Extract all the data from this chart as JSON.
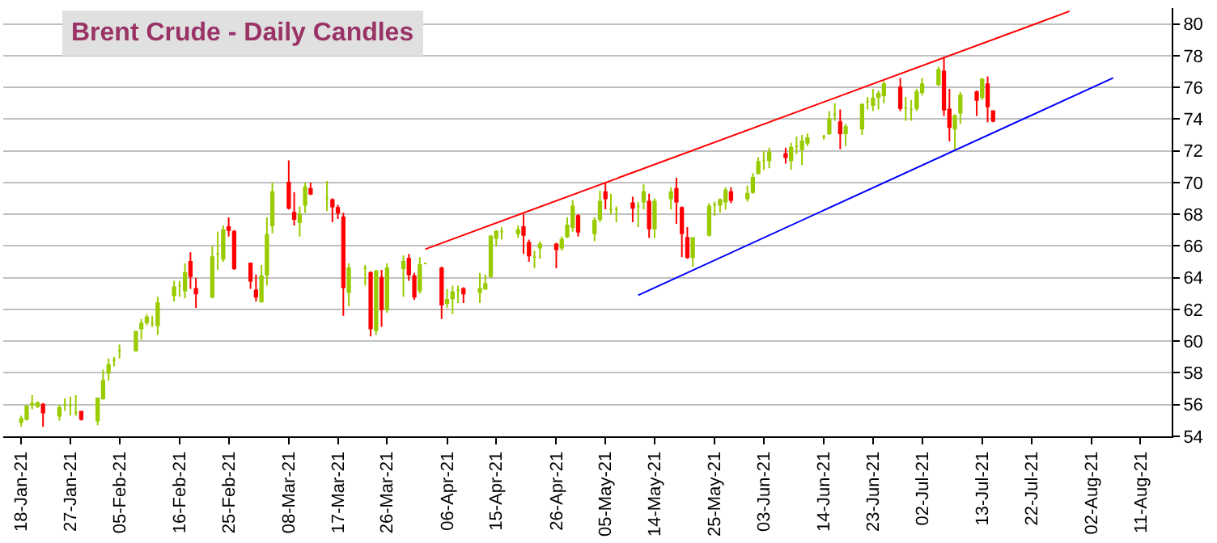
{
  "chart_data": {
    "type": "candlestick",
    "title": "Brent Crude - Daily Candles",
    "x": [
      "--01-18",
      "--01-19",
      "--01-20",
      "--01-21",
      "--01-22",
      "--01-25",
      "--01-26",
      "--01-27",
      "--01-28",
      "--01-29",
      "--02-01",
      "--02-02",
      "--02-03",
      "--02-04",
      "--02-05",
      "--02-08",
      "--02-09",
      "--02-10",
      "--02-11",
      "--02-12",
      "--02-15",
      "--02-16",
      "--02-17",
      "--02-18",
      "--02-19",
      "--02-22",
      "--02-23",
      "--02-24",
      "--02-25",
      "--02-26",
      "--03-01",
      "--03-02",
      "--03-03",
      "--03-04",
      "--03-05",
      "--03-08",
      "--03-09",
      "--03-10",
      "--03-11",
      "--03-12",
      "--03-15",
      "--03-16",
      "--03-17",
      "--03-18",
      "--03-19",
      "--03-22",
      "--03-23",
      "--03-24",
      "--03-25",
      "--03-26",
      "--03-29",
      "--03-30",
      "--03-31",
      "--04-01",
      "--04-02",
      "--04-05",
      "--04-06",
      "--04-07",
      "--04-08",
      "--04-09",
      "--04-12",
      "--04-13",
      "--04-14",
      "--04-15",
      "--04-16",
      "--04-19",
      "--04-20",
      "--04-21",
      "--04-22",
      "--04-23",
      "--04-26",
      "--04-27",
      "--04-28",
      "--04-29",
      "--04-30",
      "--05-03",
      "--05-04",
      "--05-05",
      "--05-06",
      "--05-07",
      "--05-10",
      "--05-11",
      "--05-12",
      "--05-13",
      "--05-14",
      "--05-17",
      "--05-18",
      "--05-19",
      "--05-20",
      "--05-21",
      "--05-24",
      "--05-25",
      "--05-26",
      "--05-27",
      "--05-28",
      "--05-31",
      "--06-01",
      "--06-02",
      "--06-03",
      "--06-04",
      "--06-07",
      "--06-08",
      "--06-09",
      "--06-10",
      "--06-11",
      "--06-14",
      "--06-15",
      "--06-16",
      "--06-17",
      "--06-18",
      "--06-21",
      "--06-22",
      "--06-23",
      "--06-24",
      "--06-25",
      "--06-28",
      "--06-29",
      "--06-30",
      "--07-01",
      "--07-02",
      "--07-05",
      "--07-06",
      "--07-07",
      "--07-08",
      "--07-09",
      "--07-12",
      "--07-13",
      "--07-14",
      "--07-15"
    ],
    "ohlc": [
      [
        54.9,
        55.3,
        54.6,
        55.1
      ],
      [
        55.1,
        55.9,
        55.0,
        55.9
      ],
      [
        56.0,
        56.6,
        55.7,
        56.05
      ],
      [
        55.9,
        56.2,
        55.8,
        56.1
      ],
      [
        56.0,
        56.1,
        54.6,
        55.5
      ],
      [
        55.3,
        56.0,
        55.0,
        55.8
      ],
      [
        56.0,
        56.4,
        55.6,
        56.0
      ],
      [
        55.95,
        56.5,
        55.3,
        55.95
      ],
      [
        55.5,
        56.6,
        55.3,
        55.5
      ],
      [
        55.55,
        55.6,
        55.0,
        55.1
      ],
      [
        55.0,
        56.4,
        54.7,
        56.4
      ],
      [
        56.4,
        58.2,
        56.3,
        57.5
      ],
      [
        58.0,
        58.9,
        57.5,
        58.5
      ],
      [
        58.8,
        59.0,
        58.4,
        58.8
      ],
      [
        59.4,
        59.8,
        58.9,
        59.4
      ],
      [
        59.4,
        60.6,
        59.4,
        60.6
      ],
      [
        60.8,
        61.4,
        60.1,
        61.1
      ],
      [
        61.2,
        61.7,
        61.0,
        61.5
      ],
      [
        61.1,
        61.6,
        60.9,
        61.1
      ],
      [
        61.0,
        62.8,
        60.4,
        62.4
      ],
      [
        62.9,
        63.8,
        62.5,
        63.4
      ],
      [
        63.5,
        63.8,
        62.8,
        63.5
      ],
      [
        63.2,
        64.9,
        62.7,
        64.3
      ],
      [
        65.0,
        65.6,
        63.3,
        64.1
      ],
      [
        63.3,
        64.0,
        62.1,
        63.0
      ],
      [
        62.8,
        66.0,
        62.7,
        65.3
      ],
      [
        65.5,
        66.9,
        64.5,
        65.5
      ],
      [
        65.2,
        67.3,
        65.0,
        67.0
      ],
      [
        67.2,
        67.8,
        66.6,
        67.0
      ],
      [
        66.9,
        67.0,
        64.5,
        64.6
      ],
      [
        64.9,
        64.9,
        63.3,
        63.8
      ],
      [
        63.2,
        64.2,
        62.5,
        62.8
      ],
      [
        62.5,
        64.8,
        62.5,
        64.1
      ],
      [
        64.2,
        67.8,
        63.5,
        66.7
      ],
      [
        67.3,
        70.0,
        66.8,
        69.4
      ],
      [
        70.0,
        71.4,
        68.3,
        68.4
      ],
      [
        68.1,
        69.4,
        67.3,
        67.7
      ],
      [
        67.5,
        68.5,
        66.6,
        68.0
      ],
      [
        68.6,
        70.0,
        68.1,
        69.7
      ],
      [
        69.6,
        70.0,
        69.2,
        69.3
      ],
      [
        69.0,
        70.1,
        68.2,
        69.0
      ],
      [
        68.9,
        69.0,
        67.5,
        68.5
      ],
      [
        68.4,
        68.6,
        67.7,
        68.1
      ],
      [
        67.8,
        68.1,
        61.6,
        63.4
      ],
      [
        63.1,
        64.9,
        62.2,
        64.6
      ],
      [
        64.6,
        64.8,
        63.5,
        64.6
      ],
      [
        64.3,
        64.4,
        60.3,
        60.8
      ],
      [
        60.7,
        64.5,
        60.4,
        64.4
      ],
      [
        64.0,
        64.5,
        60.9,
        62.0
      ],
      [
        62.0,
        64.9,
        61.8,
        64.6
      ],
      [
        64.6,
        65.4,
        62.8,
        65.0
      ],
      [
        65.2,
        65.5,
        63.8,
        64.2
      ],
      [
        64.1,
        64.3,
        62.6,
        62.8
      ],
      [
        63.2,
        65.3,
        63.0,
        64.8
      ],
      [
        64.9,
        64.9,
        64.9,
        64.9
      ],
      [
        64.6,
        64.7,
        61.4,
        62.3
      ],
      [
        62.4,
        63.3,
        62.1,
        62.6
      ],
      [
        62.7,
        63.5,
        61.7,
        63.1
      ],
      [
        63.2,
        63.5,
        62.4,
        63.2
      ],
      [
        63.3,
        63.4,
        62.4,
        63.0
      ],
      [
        63.1,
        64.3,
        62.4,
        63.3
      ],
      [
        63.3,
        64.2,
        63.3,
        63.6
      ],
      [
        64.1,
        66.7,
        64.0,
        66.6
      ],
      [
        66.5,
        67.0,
        66.0,
        66.9
      ],
      [
        66.9,
        67.2,
        66.4,
        66.9
      ],
      [
        66.8,
        67.3,
        66.5,
        67.0
      ],
      [
        67.2,
        68.0,
        65.5,
        66.7
      ],
      [
        66.2,
        66.4,
        65.0,
        65.4
      ],
      [
        65.3,
        65.7,
        64.6,
        65.3
      ],
      [
        65.9,
        66.3,
        65.2,
        66.1
      ],
      [
        66.1,
        66.2,
        64.6,
        65.8
      ],
      [
        65.9,
        66.6,
        65.7,
        66.4
      ],
      [
        66.6,
        67.8,
        66.5,
        67.3
      ],
      [
        67.2,
        68.9,
        66.9,
        68.5
      ],
      [
        67.9,
        68.0,
        66.6,
        66.9
      ],
      [
        66.8,
        67.8,
        66.3,
        67.6
      ],
      [
        67.7,
        69.5,
        67.5,
        68.8
      ],
      [
        69.4,
        70.0,
        68.3,
        69.0
      ],
      [
        68.3,
        69.3,
        68.0,
        68.3
      ],
      [
        68.3,
        68.5,
        67.5,
        68.3
      ],
      [
        68.7,
        69.1,
        67.5,
        68.4
      ],
      [
        68.5,
        68.8,
        67.2,
        68.5
      ],
      [
        68.8,
        69.9,
        68.3,
        69.4
      ],
      [
        68.8,
        69.3,
        66.5,
        67.1
      ],
      [
        67.1,
        69.0,
        66.5,
        68.8
      ],
      [
        69.0,
        69.7,
        68.3,
        69.4
      ],
      [
        69.6,
        70.3,
        67.4,
        68.8
      ],
      [
        68.4,
        68.5,
        65.3,
        66.8
      ],
      [
        66.5,
        67.2,
        65.2,
        65.3
      ],
      [
        65.3,
        66.5,
        64.7,
        66.5
      ],
      [
        66.7,
        68.7,
        66.6,
        68.5
      ],
      [
        68.6,
        68.8,
        67.9,
        68.6
      ],
      [
        68.6,
        69.0,
        68.1,
        68.9
      ],
      [
        68.8,
        69.7,
        68.3,
        69.5
      ],
      [
        69.4,
        69.7,
        68.7,
        68.9
      ],
      [
        69.0,
        69.8,
        68.8,
        69.3
      ],
      [
        69.4,
        70.6,
        69.3,
        70.3
      ],
      [
        70.6,
        71.6,
        70.5,
        71.3
      ],
      [
        71.4,
        72.0,
        70.8,
        71.4
      ],
      [
        71.4,
        72.2,
        70.9,
        71.9
      ],
      [
        71.8,
        72.2,
        71.2,
        71.6
      ],
      [
        71.4,
        72.5,
        70.8,
        72.2
      ],
      [
        72.3,
        72.9,
        71.8,
        72.3
      ],
      [
        72.1,
        73.0,
        71.1,
        72.6
      ],
      [
        72.5,
        73.1,
        72.3,
        72.8
      ],
      [
        72.9,
        73.0,
        72.7,
        72.9
      ],
      [
        73.1,
        74.5,
        73.0,
        74.0
      ],
      [
        74.3,
        75.0,
        73.9,
        74.3
      ],
      [
        73.8,
        74.6,
        72.1,
        73.1
      ],
      [
        73.1,
        73.7,
        72.3,
        73.5
      ],
      [
        73.4,
        75.0,
        73.0,
        74.9
      ],
      [
        75.1,
        75.4,
        74.6,
        75.1
      ],
      [
        74.9,
        75.9,
        74.5,
        75.3
      ],
      [
        75.4,
        75.8,
        74.6,
        75.6
      ],
      [
        75.5,
        76.4,
        75.0,
        76.2
      ],
      [
        76.0,
        76.6,
        74.5,
        74.7
      ],
      [
        74.7,
        75.4,
        73.9,
        74.7
      ],
      [
        74.6,
        75.2,
        73.9,
        74.6
      ],
      [
        74.7,
        75.9,
        74.5,
        75.7
      ],
      [
        75.7,
        76.6,
        75.5,
        76.2
      ],
      [
        76.2,
        77.3,
        76.1,
        77.1
      ],
      [
        77.0,
        77.9,
        74.2,
        74.6
      ],
      [
        74.6,
        75.9,
        72.6,
        73.5
      ],
      [
        73.4,
        74.3,
        72.0,
        74.2
      ],
      [
        74.4,
        75.7,
        73.7,
        75.5
      ],
      [
        75.7,
        75.8,
        74.2,
        75.2
      ],
      [
        75.4,
        76.6,
        75.2,
        76.5
      ],
      [
        76.2,
        76.7,
        73.8,
        74.8
      ],
      [
        74.5,
        74.5,
        73.8,
        73.9
      ]
    ],
    "colors": [
      "#99cc00",
      "#99cc00",
      "#99cc00",
      "#99cc00",
      "#ff0000",
      "#99cc00",
      "#99cc00",
      "#99cc00",
      "#99cc00",
      "#ff0000",
      "#99cc00",
      "#99cc00",
      "#99cc00",
      "#99cc00",
      "#99cc00",
      "#99cc00",
      "#99cc00",
      "#99cc00",
      "#99cc00",
      "#99cc00",
      "#99cc00",
      "#99cc00",
      "#99cc00",
      "#ff0000",
      "#ff0000",
      "#99cc00",
      "#99cc00",
      "#99cc00",
      "#ff0000",
      "#ff0000",
      "#ff0000",
      "#ff0000",
      "#99cc00",
      "#99cc00",
      "#99cc00",
      "#ff0000",
      "#ff0000",
      "#99cc00",
      "#99cc00",
      "#ff0000",
      "#99cc00",
      "#ff0000",
      "#ff0000",
      "#ff0000",
      "#99cc00",
      "#99cc00",
      "#ff0000",
      "#99cc00",
      "#ff0000",
      "#99cc00",
      "#99cc00",
      "#ff0000",
      "#ff0000",
      "#99cc00",
      "#99cc00",
      "#ff0000",
      "#99cc00",
      "#99cc00",
      "#99cc00",
      "#ff0000",
      "#99cc00",
      "#99cc00",
      "#99cc00",
      "#99cc00",
      "#99cc00",
      "#99cc00",
      "#ff0000",
      "#ff0000",
      "#99cc00",
      "#99cc00",
      "#ff0000",
      "#99cc00",
      "#99cc00",
      "#99cc00",
      "#ff0000",
      "#99cc00",
      "#99cc00",
      "#ff0000",
      "#99cc00",
      "#99cc00",
      "#ff0000",
      "#99cc00",
      "#99cc00",
      "#ff0000",
      "#99cc00",
      "#99cc00",
      "#ff0000",
      "#ff0000",
      "#ff0000",
      "#99cc00",
      "#99cc00",
      "#99cc00",
      "#99cc00",
      "#99cc00",
      "#ff0000",
      "#99cc00",
      "#99cc00",
      "#99cc00",
      "#99cc00",
      "#99cc00",
      "#ff0000",
      "#99cc00",
      "#99cc00",
      "#99cc00",
      "#99cc00",
      "#99cc00",
      "#99cc00",
      "#99cc00",
      "#ff0000",
      "#99cc00",
      "#99cc00",
      "#99cc00",
      "#99cc00",
      "#99cc00",
      "#99cc00",
      "#ff0000",
      "#99cc00",
      "#99cc00",
      "#99cc00",
      "#99cc00",
      "#99cc00",
      "#ff0000",
      "#ff0000",
      "#99cc00",
      "#99cc00",
      "#ff0000",
      "#99cc00",
      "#ff0000",
      "#ff0000"
    ],
    "series": [
      {
        "type": "line",
        "color": "#ff0000",
        "x": [
          "--04-02",
          "--07-29"
        ],
        "values": [
          65.8,
          80.8
        ]
      },
      {
        "type": "line",
        "color": "#0000ff",
        "x": [
          "--05-11",
          "--08-06"
        ],
        "values": [
          62.9,
          76.6
        ]
      }
    ],
    "xlim": [
      "--01-14T17:00",
      "--08-16T17:00"
    ],
    "xticks": [
      {
        "value": "--01-18",
        "label": "18-Jan-21"
      },
      {
        "value": "--01-27",
        "label": "27-Jan-21"
      },
      {
        "value": "--02-05",
        "label": "05-Feb-21"
      },
      {
        "value": "--02-16",
        "label": "16-Feb-21"
      },
      {
        "value": "--02-25",
        "label": "25-Feb-21"
      },
      {
        "value": "--03-08",
        "label": "08-Mar-21"
      },
      {
        "value": "--03-17",
        "label": "17-Mar-21"
      },
      {
        "value": "--03-26",
        "label": "26-Mar-21"
      },
      {
        "value": "--04-06",
        "label": "06-Apr-21"
      },
      {
        "value": "--04-15",
        "label": "15-Apr-21"
      },
      {
        "value": "--04-26",
        "label": "26-Apr-21"
      },
      {
        "value": "--05-05",
        "label": "05-May-21"
      },
      {
        "value": "--05-14",
        "label": "14-May-21"
      },
      {
        "value": "--05-25",
        "label": "25-May-21"
      },
      {
        "value": "--06-03",
        "label": "03-Jun-21"
      },
      {
        "value": "--06-14",
        "label": "14-Jun-21"
      },
      {
        "value": "--06-23",
        "label": "23-Jun-21"
      },
      {
        "value": "--07-02",
        "label": "02-Jul-21"
      },
      {
        "value": "--07-13",
        "label": "13-Jul-21"
      },
      {
        "value": "--07-22",
        "label": "22-Jul-21"
      },
      {
        "value": "--08-02",
        "label": "02-Aug-21"
      },
      {
        "value": "--08-11",
        "label": "11-Aug-21"
      }
    ],
    "ylim": [
      54,
      81
    ],
    "yticks": [
      54,
      56,
      58,
      60,
      62,
      64,
      66,
      68,
      70,
      72,
      74,
      76,
      78,
      80
    ],
    "grid": "y"
  }
}
